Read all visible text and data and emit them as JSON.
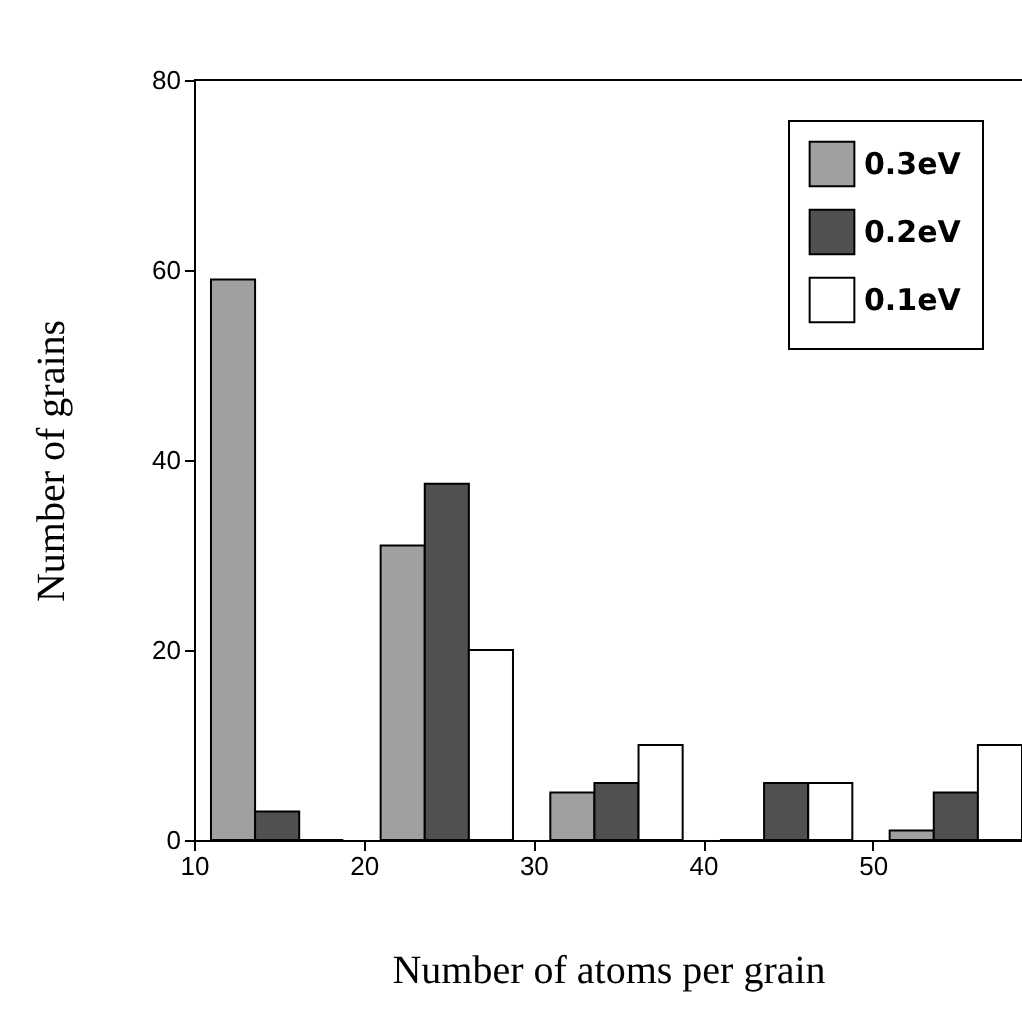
{
  "chart_data": {
    "type": "bar",
    "xlabel": "Number of atoms per grain",
    "ylabel": "Number of grains",
    "series": [
      {
        "name": "0.3eV",
        "color": "#a0a0a0",
        "x": [
          12.3,
          22.3,
          32.3,
          42.3,
          52.3
        ],
        "values": [
          59,
          31,
          5,
          0,
          1
        ]
      },
      {
        "name": "0.2eV",
        "color": "#505050",
        "x": [
          14.9,
          24.9,
          34.9,
          44.9,
          54.9
        ],
        "values": [
          3,
          37.5,
          6,
          6,
          5
        ]
      },
      {
        "name": "0.1eV",
        "color": "#ffffff",
        "x": [
          17.5,
          27.5,
          37.5,
          47.5,
          57.5
        ],
        "values": [
          0,
          20,
          10,
          6,
          10
        ]
      }
    ],
    "xlim": [
      10,
      58.8
    ],
    "xticks": [
      10,
      20,
      30,
      40,
      50
    ],
    "ylim": [
      0,
      80
    ],
    "yticks": [
      0,
      20,
      40,
      60,
      80
    ],
    "grid": false,
    "legend": "top right"
  }
}
